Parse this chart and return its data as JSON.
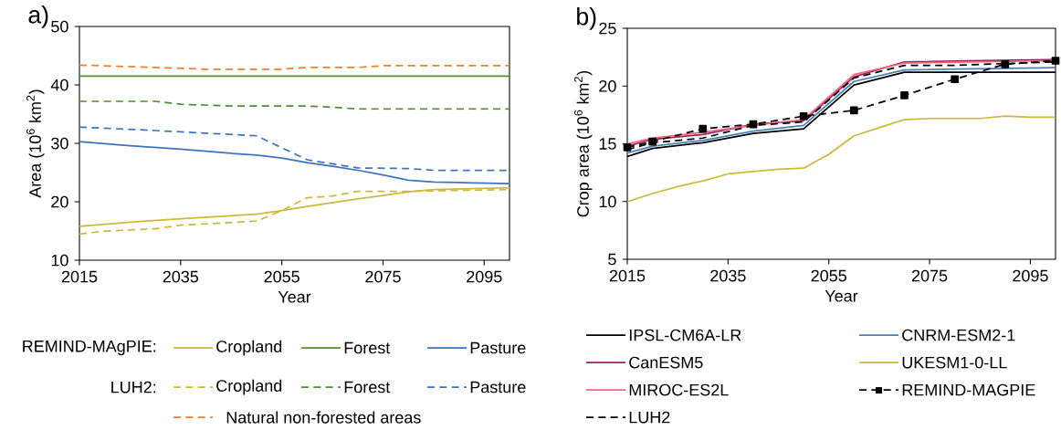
{
  "chart_data": [
    {
      "type": "line",
      "title": "a)",
      "xlabel": "Year",
      "ylabel": "Area (10$^{6}$ km$^{2}$)",
      "xlim": [
        2015,
        2100
      ],
      "ylim": [
        10,
        50
      ],
      "xticks": [
        2015,
        2035,
        2055,
        2075,
        2095
      ],
      "yticks": [
        10,
        20,
        30,
        40,
        50
      ],
      "legend": "bottom",
      "grid": false,
      "annotations": [
        "REMIND-MAgPIE:",
        "LUH2:"
      ],
      "series": [
        {
          "name": "Cropland",
          "color": "#cdb93c",
          "line_style": "solid",
          "x": [
            2015,
            2025,
            2035,
            2050,
            2055,
            2060,
            2070,
            2075,
            2080,
            2085,
            2100
          ],
          "values": [
            15.8,
            16.5,
            17.1,
            17.9,
            18.5,
            19.2,
            20.5,
            21.1,
            21.7,
            22.1,
            22.4
          ]
        },
        {
          "name": "Forest",
          "color": "#4f8f2f",
          "line_style": "solid",
          "x": [
            2015,
            2100
          ],
          "values": [
            41.5,
            41.5
          ]
        },
        {
          "name": "Pasture",
          "color": "#3d74bd",
          "line_style": "solid",
          "x": [
            2015,
            2025,
            2035,
            2045,
            2050,
            2055,
            2060,
            2065,
            2070,
            2075,
            2080,
            2085,
            2090,
            2100
          ],
          "values": [
            30.3,
            29.6,
            29.0,
            28.3,
            28.0,
            27.5,
            26.7,
            26.1,
            25.4,
            24.6,
            23.7,
            23.4,
            23.3,
            23.1
          ]
        },
        {
          "name": "Cropland",
          "color": "#cdb93c",
          "line_style": "dashed",
          "x": [
            2015,
            2020,
            2030,
            2035,
            2050,
            2055,
            2060,
            2065,
            2070,
            2080,
            2100
          ],
          "values": [
            14.5,
            15.0,
            15.4,
            16.0,
            16.7,
            18.5,
            20.7,
            21.0,
            21.8,
            21.8,
            22.1
          ]
        },
        {
          "name": "Forest",
          "color": "#4f8f2f",
          "line_style": "dashed",
          "x": [
            2015,
            2030,
            2035,
            2045,
            2060,
            2065,
            2070,
            2100
          ],
          "values": [
            37.2,
            37.2,
            36.7,
            36.4,
            36.4,
            36.2,
            35.9,
            35.9
          ]
        },
        {
          "name": "Pasture",
          "color": "#3d74bd",
          "line_style": "dashed",
          "x": [
            2015,
            2030,
            2050,
            2060,
            2070,
            2080,
            2085,
            2100
          ],
          "values": [
            32.8,
            32.2,
            31.3,
            27.2,
            25.8,
            25.7,
            25.4,
            25.4
          ]
        },
        {
          "name": "Natural non-forested areas",
          "color": "#f07f2e",
          "line_style": "dashed",
          "x": [
            2015,
            2030,
            2040,
            2055,
            2060,
            2070,
            2075,
            2100
          ],
          "values": [
            43.4,
            43.0,
            42.7,
            42.7,
            43.0,
            43.0,
            43.3,
            43.3
          ]
        }
      ]
    },
    {
      "type": "line",
      "title": "b)",
      "xlabel": "Year",
      "ylabel": "Crop area (10$^{6}$ km$^{2}$)",
      "xlim": [
        2015,
        2100
      ],
      "ylim": [
        5,
        25
      ],
      "xticks": [
        2015,
        2035,
        2055,
        2075,
        2095
      ],
      "yticks": [
        5,
        10,
        15,
        20,
        25
      ],
      "legend": "bottom",
      "grid": false,
      "series": [
        {
          "name": "IPSL-CM6A-LR",
          "color": "#000000",
          "line_style": "solid",
          "x": [
            2015,
            2020,
            2030,
            2040,
            2050,
            2060,
            2070,
            2100
          ],
          "values": [
            13.9,
            14.6,
            15.1,
            15.9,
            16.3,
            20.1,
            21.2,
            21.2
          ]
        },
        {
          "name": "CNRM-ESM2-1",
          "color": "#4a80b8",
          "line_style": "solid",
          "x": [
            2015,
            2020,
            2030,
            2040,
            2050,
            2060,
            2070,
            2100
          ],
          "values": [
            14.2,
            14.8,
            15.3,
            16.1,
            16.6,
            20.4,
            21.4,
            21.6
          ]
        },
        {
          "name": "CanESM5",
          "color": "#9c2264",
          "line_style": "solid",
          "x": [
            2015,
            2020,
            2030,
            2040,
            2050,
            2060,
            2070,
            2100
          ],
          "values": [
            14.8,
            15.4,
            15.8,
            16.7,
            17.0,
            20.8,
            22.1,
            22.3
          ]
        },
        {
          "name": "UKESM1-0-LL",
          "color": "#cdb93c",
          "line_style": "solid",
          "x": [
            2015,
            2020,
            2025,
            2030,
            2035,
            2040,
            2045,
            2050,
            2055,
            2060,
            2065,
            2070,
            2075,
            2080,
            2085,
            2090,
            2095,
            2100
          ],
          "values": [
            10.0,
            10.7,
            11.3,
            11.8,
            12.4,
            12.6,
            12.8,
            12.9,
            14.1,
            15.7,
            16.4,
            17.1,
            17.2,
            17.2,
            17.2,
            17.4,
            17.3,
            17.3
          ]
        },
        {
          "name": "MIROC-ES2L",
          "color": "#f2647c",
          "line_style": "solid",
          "x": [
            2015,
            2020,
            2030,
            2040,
            2050,
            2060,
            2070,
            2100
          ],
          "values": [
            15.0,
            15.5,
            16.0,
            16.6,
            17.1,
            21.0,
            22.0,
            22.2
          ]
        },
        {
          "name": "REMIND-MAGPIE",
          "color": "#000000",
          "line_style": "dashed",
          "marker": "square",
          "x": [
            2015,
            2020,
            2030,
            2040,
            2050,
            2060,
            2070,
            2080,
            2090,
            2100
          ],
          "values": [
            14.7,
            15.2,
            16.3,
            16.7,
            17.4,
            17.9,
            19.2,
            20.6,
            21.9,
            22.2
          ]
        },
        {
          "name": "LUH2",
          "color": "#000000",
          "line_style": "dashed",
          "x": [
            2015,
            2020,
            2030,
            2040,
            2050,
            2060,
            2070,
            2080,
            2100
          ],
          "values": [
            14.5,
            15.1,
            15.5,
            16.6,
            16.9,
            20.7,
            21.8,
            21.8,
            22.1
          ]
        }
      ]
    }
  ]
}
